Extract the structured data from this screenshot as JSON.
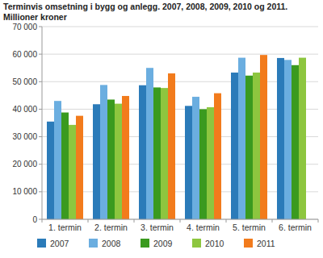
{
  "chart_data": {
    "type": "bar",
    "title": "Terminvis omsetning i bygg og anlegg. 2007, 2008, 2009, 2010 og 2011.",
    "subtitle": "Millioner kroner",
    "categories": [
      "1. termin",
      "2. termin",
      "3. termin",
      "4. termin",
      "5. termin",
      "6. termin"
    ],
    "series": [
      {
        "name": "2007",
        "color": "#2b7bb9",
        "values": [
          35500,
          41800,
          48700,
          41200,
          53300,
          58600
        ]
      },
      {
        "name": "2008",
        "color": "#6baee0",
        "values": [
          43000,
          48800,
          55000,
          44500,
          58700,
          57900
        ]
      },
      {
        "name": "2009",
        "color": "#3a9a1f",
        "values": [
          38800,
          43500,
          47900,
          40000,
          52200,
          56000
        ]
      },
      {
        "name": "2010",
        "color": "#8dc63f",
        "values": [
          34300,
          42000,
          47700,
          40700,
          53300,
          58700
        ]
      },
      {
        "name": "2011",
        "color": "#f27b1c",
        "values": [
          37600,
          44800,
          53000,
          45800,
          59700,
          null
        ]
      }
    ],
    "ylim": [
      0,
      70000
    ],
    "yticks": [
      0,
      {
        "value": 10000,
        "label": "10 000"
      },
      {
        "value": 20000,
        "label": "20 000"
      },
      {
        "value": 30000,
        "label": "30 000"
      },
      {
        "value": 40000,
        "label": "40 000"
      },
      {
        "value": 50000,
        "label": "50 000"
      },
      {
        "value": 60000,
        "label": "60 000"
      },
      {
        "value": 70000,
        "label": "70 000"
      }
    ],
    "grid": true,
    "legend": "bottom"
  }
}
